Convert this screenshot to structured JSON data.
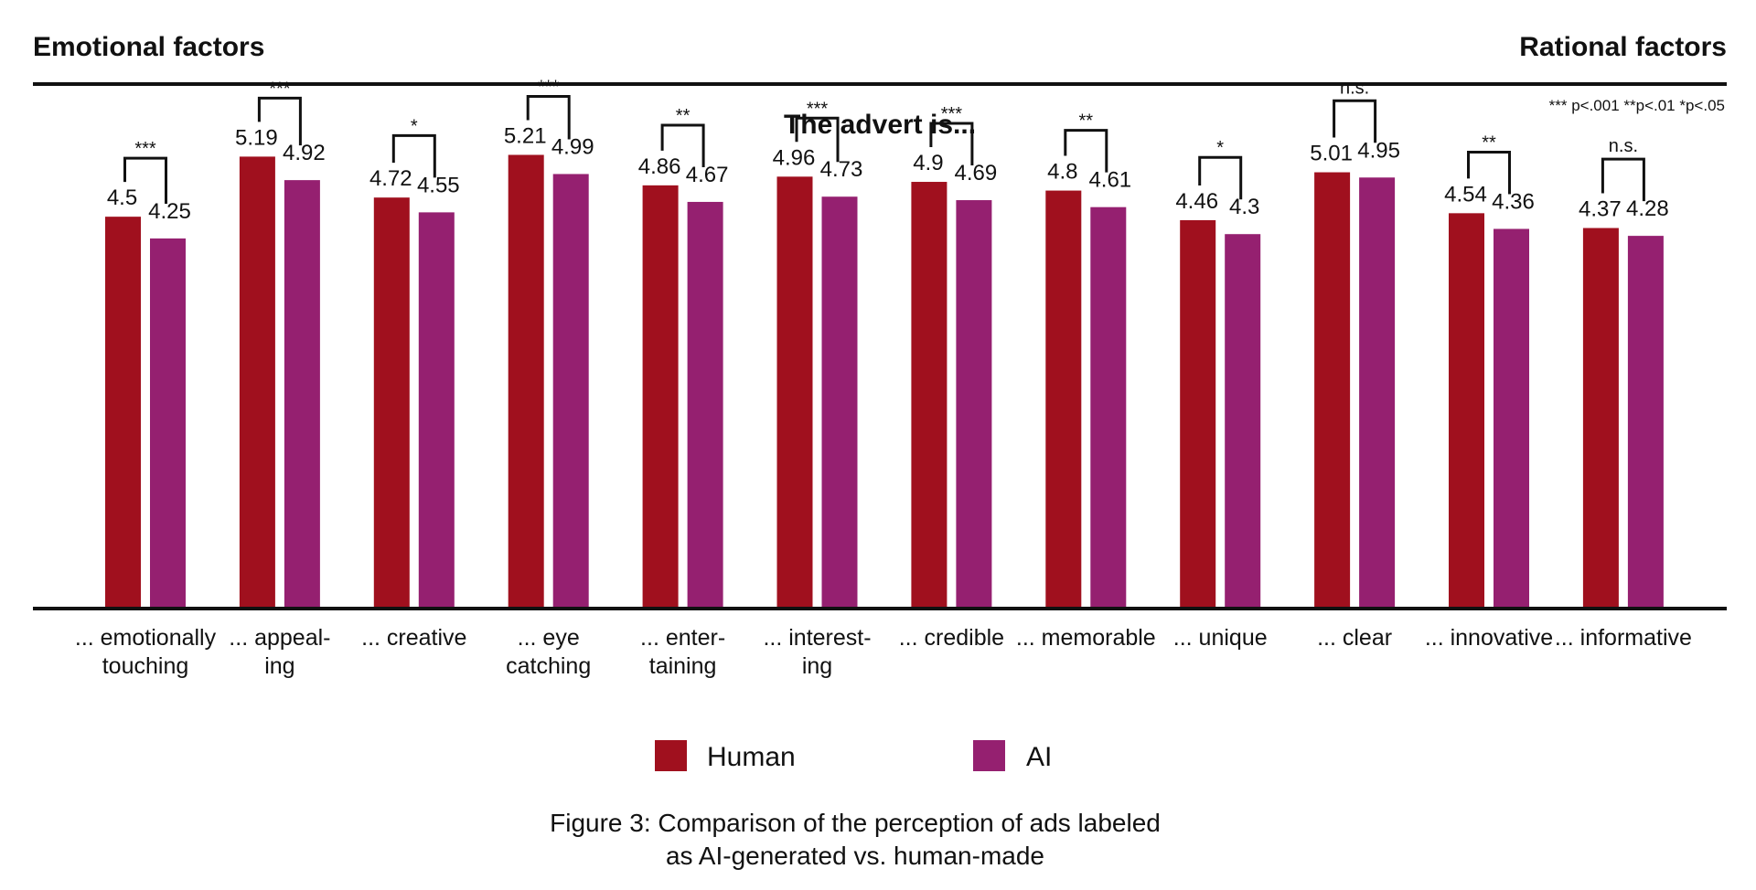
{
  "header": {
    "left": "Emotional factors",
    "right": "Rational factors",
    "significance_note": "*** p<.001 **p<.01 *p<.05"
  },
  "chart_data": {
    "type": "bar",
    "title": "The advert is...",
    "categories": [
      [
        "... emotionally",
        "touching"
      ],
      [
        "... appeal-",
        "ing"
      ],
      [
        "... creative"
      ],
      [
        "... eye",
        "catching"
      ],
      [
        "... enter-",
        "taining"
      ],
      [
        "... interest-",
        "ing"
      ],
      [
        "... credible"
      ],
      [
        "... memorable"
      ],
      [
        "... unique"
      ],
      [
        "... clear"
      ],
      [
        "... innovative"
      ],
      [
        "... informative"
      ]
    ],
    "series": [
      {
        "name": "Human",
        "color": "#a0101e",
        "values": [
          4.5,
          5.19,
          4.72,
          5.21,
          4.86,
          4.96,
          4.9,
          4.8,
          4.46,
          5.01,
          4.54,
          4.37
        ]
      },
      {
        "name": "AI",
        "color": "#952070",
        "values": [
          4.25,
          4.92,
          4.55,
          4.99,
          4.67,
          4.73,
          4.69,
          4.61,
          4.3,
          4.95,
          4.36,
          4.28
        ]
      }
    ],
    "significance": [
      "***",
      "***",
      "*",
      "***",
      "**",
      "***",
      "***",
      "**",
      "*",
      "n.s.",
      "**",
      "n.s."
    ],
    "ylim": [
      0,
      5.5
    ],
    "grid": false,
    "legend_position": "bottom-center",
    "xlabel": "",
    "ylabel": ""
  },
  "caption": {
    "line1": "Figure 3: Comparison of the perception of ads labeled",
    "line2": "as AI-generated vs. human-made"
  }
}
